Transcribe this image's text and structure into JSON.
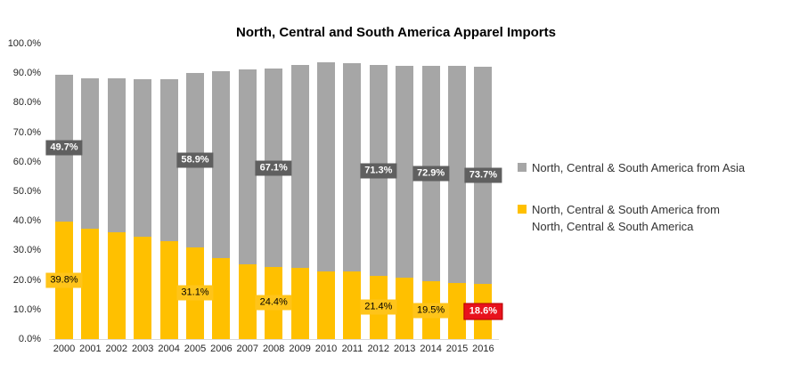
{
  "title": "North, Central and South America Apparel Imports",
  "colors": {
    "asia_bar": "#a6a6a6",
    "domestic_bar": "#ffc000",
    "asia_label_bg": "#5f5f5f",
    "domestic_label_bg": "#ffc41a",
    "highlight_label_bg": "#e8121d",
    "axis_line": "#d9d9d9"
  },
  "y_axis": {
    "ticks": [
      "100.0%",
      "90.0%",
      "80.0%",
      "70.0%",
      "60.0%",
      "50.0%",
      "40.0%",
      "30.0%",
      "20.0%",
      "10.0%",
      "0.0%"
    ]
  },
  "legend": {
    "items": [
      {
        "swatch_color": "#a6a6a6",
        "lines": [
          "North, Central & South America from Asia"
        ]
      },
      {
        "swatch_color": "#ffc000",
        "lines": [
          "North, Central & South America from",
          "North, Central & South America"
        ]
      }
    ]
  },
  "chart_data": {
    "type": "bar",
    "stacked": true,
    "title": "North, Central and South America Apparel Imports",
    "xlabel": "",
    "ylabel": "",
    "ylim": [
      0,
      100
    ],
    "y_tick_step": 10,
    "grid": false,
    "legend_position": "right",
    "categories": [
      "2000",
      "2001",
      "2002",
      "2003",
      "2004",
      "2005",
      "2006",
      "2007",
      "2008",
      "2009",
      "2010",
      "2011",
      "2012",
      "2013",
      "2014",
      "2015",
      "2016"
    ],
    "series": [
      {
        "name": "North, Central & South America from North, Central & South America",
        "key": "domestic",
        "color": "#ffc000",
        "values": [
          39.8,
          37.3,
          36.1,
          34.5,
          33.1,
          31.1,
          27.5,
          25.2,
          24.4,
          24.2,
          23.0,
          22.8,
          21.4,
          20.7,
          19.5,
          19.0,
          18.6
        ]
      },
      {
        "name": "North, Central & South America from Asia",
        "key": "asia",
        "color": "#a6a6a6",
        "values": [
          49.7,
          51.0,
          52.2,
          53.4,
          54.8,
          58.9,
          63.2,
          66.0,
          67.1,
          68.6,
          70.7,
          70.6,
          71.3,
          71.8,
          72.9,
          73.5,
          73.7
        ]
      }
    ],
    "data_labels": [
      {
        "category": "2000",
        "series": "asia",
        "text": "49.7%"
      },
      {
        "category": "2005",
        "series": "asia",
        "text": "58.9%"
      },
      {
        "category": "2008",
        "series": "asia",
        "text": "67.1%"
      },
      {
        "category": "2012",
        "series": "asia",
        "text": "71.3%"
      },
      {
        "category": "2014",
        "series": "asia",
        "text": "72.9%"
      },
      {
        "category": "2016",
        "series": "asia",
        "text": "73.7%"
      },
      {
        "category": "2000",
        "series": "domestic",
        "text": "39.8%"
      },
      {
        "category": "2005",
        "series": "domestic",
        "text": "31.1%"
      },
      {
        "category": "2008",
        "series": "domestic",
        "text": "24.4%"
      },
      {
        "category": "2012",
        "series": "domestic",
        "text": "21.4%"
      },
      {
        "category": "2014",
        "series": "domestic",
        "text": "19.5%"
      },
      {
        "category": "2016",
        "series": "domestic",
        "text": "18.6%",
        "highlight": true
      }
    ]
  }
}
